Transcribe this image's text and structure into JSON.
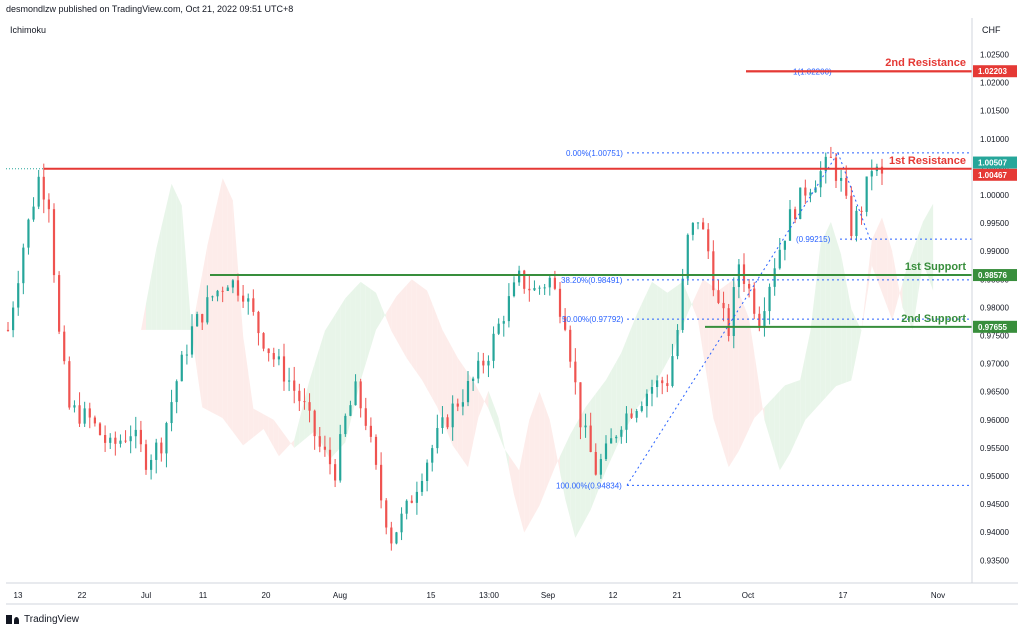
{
  "header": {
    "publisher_line": "desmondlzw published on TradingView.com, Oct 21, 2022 09:51 UTC+8"
  },
  "indicator_label": "Ichimoku",
  "currency": "CHF",
  "branding": {
    "logo_text": "TradingView"
  },
  "colors": {
    "up": "#26a69a",
    "down": "#ef5350",
    "resistance": "#e53935",
    "support": "#388e3c",
    "fib": "#2962ff",
    "cloud_bull": "#e8f5e9",
    "cloud_bear": "#fdecea"
  },
  "chart_data": {
    "type": "candlestick",
    "symbol_currency": "CHF",
    "ylim": [
      0.9315,
      1.0315
    ],
    "y_ticks": [
      "1.02500",
      "1.02000",
      "1.01500",
      "1.01000",
      "1.00500",
      "1.00000",
      "0.99500",
      "0.99000",
      "0.98500",
      "0.98000",
      "0.97500",
      "0.97000",
      "0.96500",
      "0.96000",
      "0.95500",
      "0.95000",
      "0.94500",
      "0.94000",
      "0.93500"
    ],
    "x_ticks": [
      "13",
      "22",
      "Jul",
      "11",
      "20",
      "Aug",
      "15",
      "13:00",
      "Sep",
      "12",
      "21",
      "Oct",
      "17",
      "Nov"
    ],
    "levels": [
      {
        "name": "2nd Resistance",
        "price": 1.02203,
        "badge": "1.02203",
        "type": "resistance"
      },
      {
        "name": "1st Resistance",
        "price": 1.00467,
        "badge": "1.00467",
        "type": "resistance"
      },
      {
        "name": "1st Support",
        "price": 0.98576,
        "badge": "0.98576",
        "type": "support"
      },
      {
        "name": "2nd Support",
        "price": 0.97655,
        "badge": "0.97655",
        "type": "support"
      }
    ],
    "last_price": {
      "value": 1.00507,
      "badge": "1.00507"
    },
    "fib_extension": {
      "label": "1(1.02200)",
      "price": 1.022
    },
    "fib_retracement": [
      {
        "label": "0.00%(1.00751)",
        "price": 1.00751
      },
      {
        "label": "(0.99215)",
        "price": 0.99215
      },
      {
        "label": "38.20%(0.98491)",
        "price": 0.98491
      },
      {
        "label": "50.00%(0.97792)",
        "price": 0.97792
      },
      {
        "label": "100.00%(0.94834)",
        "price": 0.94834
      }
    ],
    "price_path": [
      [
        0,
        0.976
      ],
      [
        3,
        0.991
      ],
      [
        6,
        1.003
      ],
      [
        8,
        0.999
      ],
      [
        10,
        0.975
      ],
      [
        12,
        0.962
      ],
      [
        16,
        0.96
      ],
      [
        20,
        0.955
      ],
      [
        24,
        0.958
      ],
      [
        27,
        0.953
      ],
      [
        30,
        0.956
      ],
      [
        33,
        0.967
      ],
      [
        36,
        0.976
      ],
      [
        40,
        0.982
      ],
      [
        43,
        0.985
      ],
      [
        46,
        0.983
      ],
      [
        49,
        0.976
      ],
      [
        52,
        0.971
      ],
      [
        55,
        0.967
      ],
      [
        58,
        0.962
      ],
      [
        61,
        0.955
      ],
      [
        64,
        0.951
      ],
      [
        66,
        0.96
      ],
      [
        68,
        0.965
      ],
      [
        70,
        0.96
      ],
      [
        73,
        0.946
      ],
      [
        75,
        0.939
      ],
      [
        78,
        0.944
      ],
      [
        81,
        0.951
      ],
      [
        84,
        0.957
      ],
      [
        87,
        0.962
      ],
      [
        91,
        0.967
      ],
      [
        94,
        0.972
      ],
      [
        97,
        0.979
      ],
      [
        100,
        0.985
      ],
      [
        103,
        0.983
      ],
      [
        106,
        0.985
      ],
      [
        109,
        0.978
      ],
      [
        112,
        0.96
      ],
      [
        115,
        0.951
      ],
      [
        117,
        0.954
      ],
      [
        120,
        0.96
      ],
      [
        123,
        0.963
      ],
      [
        126,
        0.966
      ],
      [
        129,
        0.967
      ],
      [
        131,
        0.976
      ],
      [
        133,
        0.992
      ],
      [
        135,
        0.996
      ],
      [
        137,
        0.99
      ],
      [
        139,
        0.98
      ],
      [
        141,
        0.976
      ],
      [
        143,
        0.988
      ],
      [
        145,
        0.983
      ],
      [
        147,
        0.978
      ],
      [
        150,
        0.988
      ],
      [
        153,
        0.996
      ],
      [
        156,
        1.001
      ],
      [
        159,
        1.004
      ],
      [
        161,
        1.006
      ],
      [
        163,
        1.002
      ],
      [
        165,
        0.994
      ],
      [
        167,
        0.998
      ],
      [
        169,
        1.005
      ],
      [
        171,
        1.003
      ]
    ]
  }
}
